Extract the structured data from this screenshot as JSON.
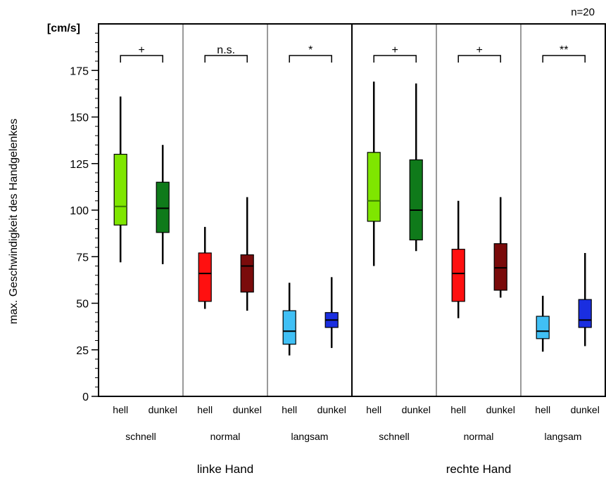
{
  "chart_data": {
    "type": "boxplot",
    "title": "",
    "ylabel": "max. Geschwindigkeit des Handgelenkes",
    "yunit": "[cm/s]",
    "sample_note": "n=20",
    "ylim": [
      0,
      200
    ],
    "yticks": [
      0,
      25,
      50,
      75,
      100,
      125,
      150,
      175
    ],
    "hands": [
      {
        "label": "linke Hand"
      },
      {
        "label": "rechte Hand"
      }
    ],
    "groups": [
      {
        "speed": "schnell",
        "significance": "+",
        "boxes": [
          {
            "label": "hell",
            "color": "#7fe600",
            "median_color": "#3a7a00",
            "whisker_low": 72,
            "q1": 92,
            "median": 102,
            "q3": 130,
            "whisker_high": 161
          },
          {
            "label": "dunkel",
            "color": "#0f7a1a",
            "median_color": "#000000",
            "whisker_low": 71,
            "q1": 88,
            "median": 101,
            "q3": 115,
            "whisker_high": 135
          }
        ]
      },
      {
        "speed": "normal",
        "significance": "n.s.",
        "boxes": [
          {
            "label": "hell",
            "color": "#ff1010",
            "median_color": "#000000",
            "whisker_low": 47,
            "q1": 51,
            "median": 66,
            "q3": 77,
            "whisker_high": 91
          },
          {
            "label": "dunkel",
            "color": "#7a0b0b",
            "median_color": "#000000",
            "whisker_low": 46,
            "q1": 56,
            "median": 70,
            "q3": 76,
            "whisker_high": 107
          }
        ]
      },
      {
        "speed": "langsam",
        "significance": "*",
        "boxes": [
          {
            "label": "hell",
            "color": "#40c0f5",
            "median_color": "#000000",
            "whisker_low": 22,
            "q1": 28,
            "median": 35,
            "q3": 46,
            "whisker_high": 61
          },
          {
            "label": "dunkel",
            "color": "#1a2ee0",
            "median_color": "#000000",
            "whisker_low": 26,
            "q1": 37,
            "median": 41,
            "q3": 45,
            "whisker_high": 64
          }
        ]
      },
      {
        "speed": "schnell",
        "significance": "+",
        "boxes": [
          {
            "label": "hell",
            "color": "#7fe600",
            "median_color": "#3a7a00",
            "whisker_low": 70,
            "q1": 94,
            "median": 105,
            "q3": 131,
            "whisker_high": 169
          },
          {
            "label": "dunkel",
            "color": "#0f7a1a",
            "median_color": "#000000",
            "whisker_low": 78,
            "q1": 84,
            "median": 100,
            "q3": 127,
            "whisker_high": 168
          }
        ]
      },
      {
        "speed": "normal",
        "significance": "+",
        "boxes": [
          {
            "label": "hell",
            "color": "#ff1010",
            "median_color": "#000000",
            "whisker_low": 42,
            "q1": 51,
            "median": 66,
            "q3": 79,
            "whisker_high": 105
          },
          {
            "label": "dunkel",
            "color": "#7a0b0b",
            "median_color": "#000000",
            "whisker_low": 53,
            "q1": 57,
            "median": 69,
            "q3": 82,
            "whisker_high": 107
          }
        ]
      },
      {
        "speed": "langsam",
        "significance": "**",
        "boxes": [
          {
            "label": "hell",
            "color": "#40c0f5",
            "median_color": "#000000",
            "whisker_low": 24,
            "q1": 31,
            "median": 35,
            "q3": 43,
            "whisker_high": 54
          },
          {
            "label": "dunkel",
            "color": "#1a2ee0",
            "median_color": "#000000",
            "whisker_low": 27,
            "q1": 37,
            "median": 41,
            "q3": 52,
            "whisker_high": 77
          }
        ]
      }
    ]
  }
}
